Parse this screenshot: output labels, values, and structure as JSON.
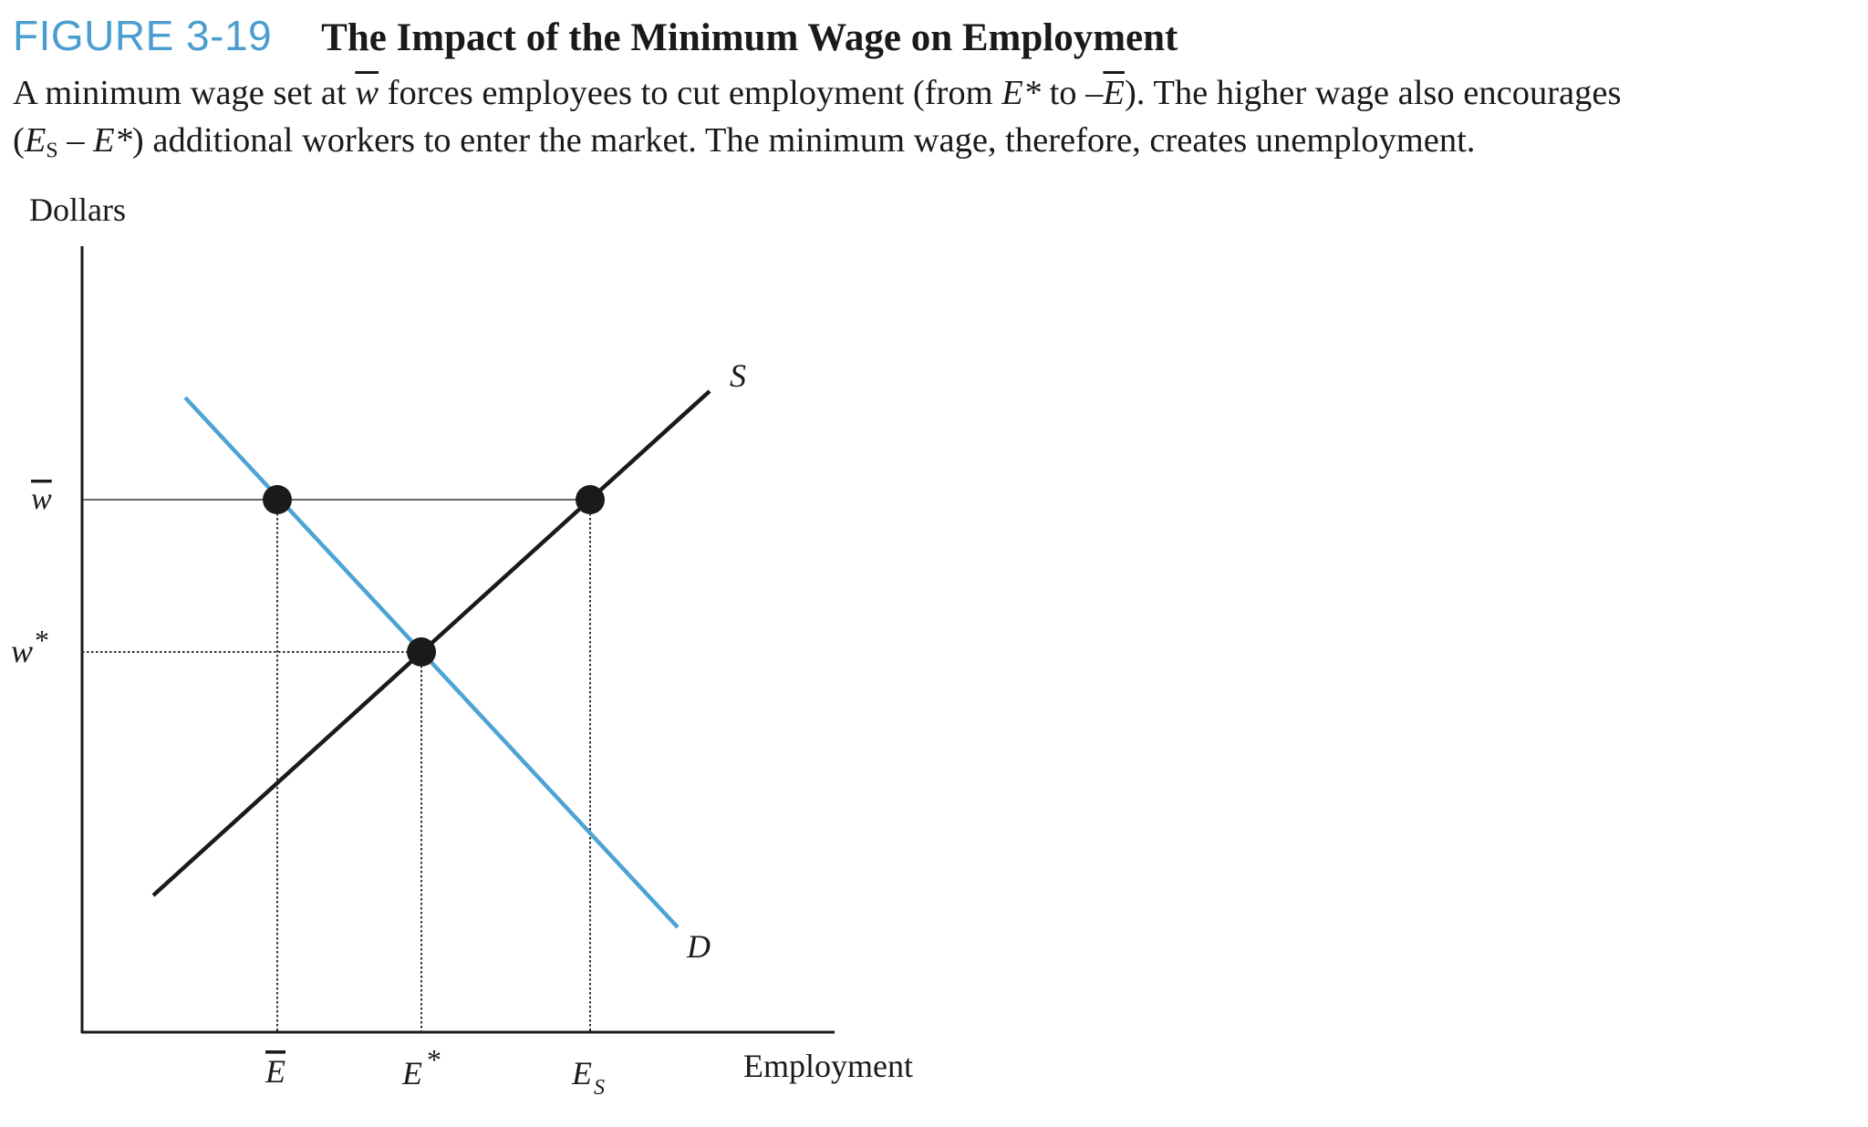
{
  "figure": {
    "label": "FIGURE 3-19",
    "title": "The Impact of the Minimum Wage on Employment"
  },
  "caption": {
    "l1_a": "A minimum wage set at ",
    "l1_wbar": "w",
    "l1_b": " forces employees to cut employment (from ",
    "l1_estar": "E*",
    "l1_c": " to –",
    "l1_ebar": "E",
    "l1_d": "). The higher wage also encourages",
    "l2_a": "(",
    "l2_e": "E",
    "l2_s": "S",
    "l2_b": " – ",
    "l2_estar": "E*",
    "l2_c": ") additional workers to enter the market. The minimum wage, therefore, creates unemployment."
  },
  "axes": {
    "y_label": "Dollars",
    "x_label": "Employment",
    "y_ticks": {
      "wbar": "w",
      "wstar_base": "w",
      "wstar_sup": "*"
    },
    "x_ticks": {
      "ebar": "E",
      "estar_base": "E",
      "estar_sup": "*",
      "es_base": "E",
      "es_sub": "S"
    }
  },
  "curves": {
    "supply_label": "S",
    "demand_label": "D",
    "supply_color": "#1a1a1a",
    "demand_color": "#4da3d4"
  },
  "points": [
    {
      "name": "minimum-wage-demand-point",
      "at": "w̄, Ē"
    },
    {
      "name": "equilibrium-point",
      "at": "w*, E*"
    },
    {
      "name": "minimum-wage-supply-point",
      "at": "w̄, E_S"
    }
  ]
}
